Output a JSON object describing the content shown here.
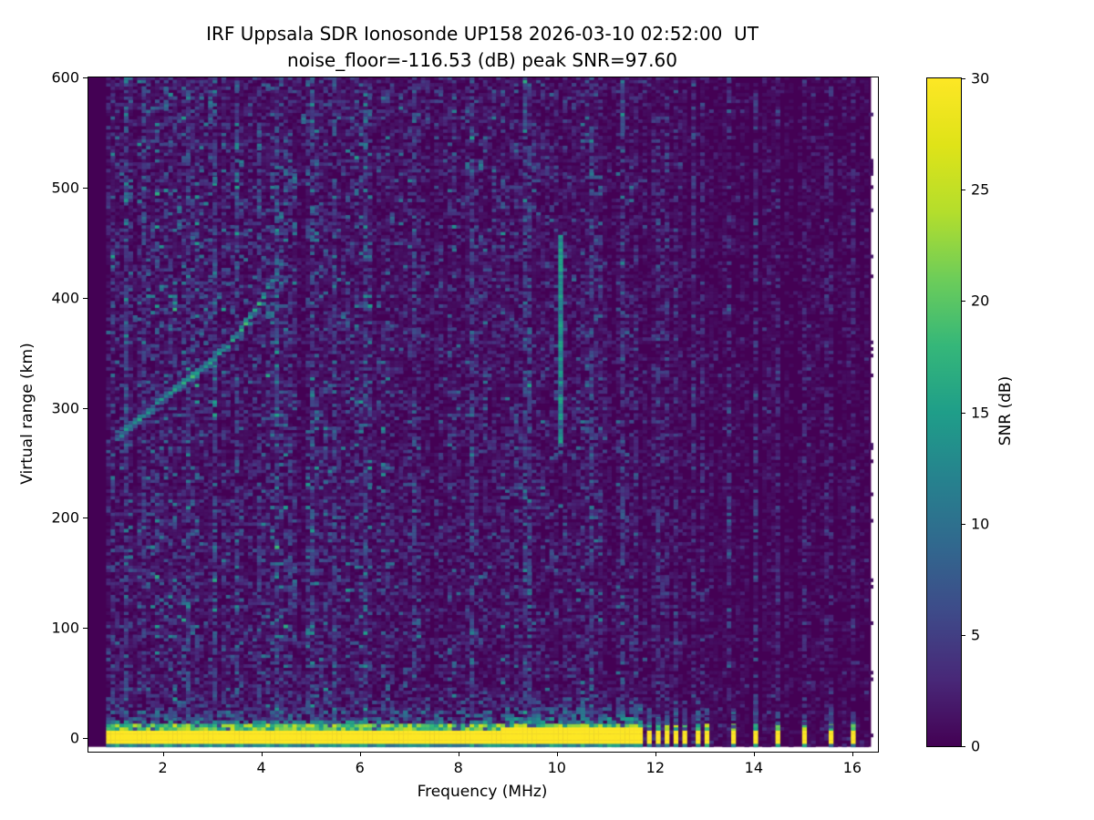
{
  "chart_data": {
    "type": "heatmap",
    "title": "IRF Uppsala SDR Ionosonde UP158 2026-03-10 02:52:00  UT",
    "subtitle": "noise_floor=-116.53 (dB) peak SNR=97.60",
    "noise_floor_db": -116.53,
    "peak_snr_db": 97.6,
    "xlabel": "Frequency (MHz)",
    "ylabel": "Virtual range (km)",
    "xlim": [
      0.49,
      16.52
    ],
    "ylim": [
      -12.4,
      600
    ],
    "x_ticks": [
      2,
      4,
      6,
      8,
      10,
      12,
      14,
      16
    ],
    "y_ticks": [
      0,
      100,
      200,
      300,
      400,
      500,
      600
    ],
    "grid": false,
    "legend": "none",
    "colormap": "viridis",
    "clim": [
      0,
      30
    ],
    "colorbar": {
      "label": "SNR (dB)",
      "ticks": [
        0,
        5,
        10,
        15,
        20,
        25,
        30
      ],
      "position": "right"
    },
    "colormap_anchors": [
      [
        0.0,
        "#440154"
      ],
      [
        0.1,
        "#482878"
      ],
      [
        0.2,
        "#3e4a89"
      ],
      [
        0.3,
        "#31688e"
      ],
      [
        0.4,
        "#26828e"
      ],
      [
        0.5,
        "#1f9e89"
      ],
      [
        0.6,
        "#35b779"
      ],
      [
        0.7,
        "#6dcd59"
      ],
      [
        0.8,
        "#b4de2c"
      ],
      [
        0.9,
        "#dfe318"
      ],
      [
        1.0,
        "#fde725"
      ]
    ],
    "mesh": {
      "freq_range_mhz": [
        0.49,
        16.38
      ],
      "data_start_mhz": 0.85,
      "range_km": [
        -8,
        604
      ],
      "freq_step_mhz": 0.09,
      "range_step_km": 3
    },
    "features": {
      "ground_band": {
        "freq_mhz": [
          0.85,
          11.72
        ],
        "core_km": [
          -5.5,
          6.5
        ],
        "snr_db": 30
      },
      "ground_band_boost_mhz": [
        8.8,
        11.72
      ],
      "ground_pulses_mhz": [
        11.81,
        12.0,
        12.19,
        12.37,
        12.56,
        12.78,
        12.96,
        13.52,
        14.02,
        14.48,
        15.0,
        15.52,
        15.98
      ],
      "rfi_stripe_10mhz": {
        "freq_mhz": 10.02,
        "range_km": [
          265,
          455
        ],
        "snr_db": 13
      },
      "faint_rfi_columns_mhz": [
        1.25,
        1.6,
        2.5,
        3.02,
        3.48,
        3.95,
        4.3,
        4.62,
        5.05,
        5.5,
        6.15,
        7.1,
        8.25,
        9.4,
        10.7,
        11.3
      ],
      "echo_trace_points": [
        [
          1.03,
          270,
          9
        ],
        [
          1.12,
          274,
          12
        ],
        [
          1.21,
          278,
          15
        ],
        [
          1.3,
          281,
          11
        ],
        [
          1.39,
          285,
          13
        ],
        [
          1.48,
          288,
          16
        ],
        [
          1.57,
          292,
          12
        ],
        [
          1.66,
          295,
          14
        ],
        [
          1.75,
          298,
          11
        ],
        [
          1.84,
          302,
          13
        ],
        [
          1.93,
          305,
          15
        ],
        [
          2.02,
          308,
          12
        ],
        [
          2.11,
          311,
          14
        ],
        [
          2.2,
          314,
          16
        ],
        [
          2.29,
          317,
          12
        ],
        [
          2.38,
          320,
          17
        ],
        [
          2.47,
          323,
          14
        ],
        [
          2.56,
          326,
          19
        ],
        [
          2.65,
          329,
          15
        ],
        [
          2.74,
          332,
          12
        ],
        [
          2.83,
          336,
          14
        ],
        [
          2.92,
          339,
          16
        ],
        [
          3.01,
          343,
          13
        ],
        [
          3.1,
          347,
          15
        ],
        [
          3.19,
          351,
          12
        ],
        [
          3.28,
          355,
          14
        ],
        [
          3.37,
          359,
          16
        ],
        [
          3.46,
          364,
          12
        ],
        [
          3.55,
          369,
          17
        ],
        [
          3.64,
          375,
          19
        ],
        [
          3.73,
          381,
          14
        ],
        [
          3.82,
          387,
          16
        ],
        [
          3.91,
          393,
          18
        ],
        [
          4.0,
          400,
          15
        ],
        [
          4.09,
          407,
          13
        ],
        [
          4.18,
          414,
          12
        ],
        [
          4.27,
          421,
          11
        ],
        [
          4.36,
          428,
          10
        ]
      ],
      "echo_scatter_points": [
        [
          2.52,
          350,
          8
        ],
        [
          2.7,
          366,
          9
        ],
        [
          2.88,
          382,
          8
        ],
        [
          3.06,
          398,
          10
        ],
        [
          3.24,
          412,
          8
        ],
        [
          3.42,
          426,
          9
        ],
        [
          3.15,
          368,
          7
        ],
        [
          3.6,
          396,
          8
        ],
        [
          3.78,
          418,
          9
        ],
        [
          3.96,
          434,
          8
        ],
        [
          4.12,
          444,
          7
        ],
        [
          3.33,
          386,
          8
        ],
        [
          2.61,
          342,
          7
        ],
        [
          2.79,
          356,
          8
        ],
        [
          3.5,
          440,
          7
        ],
        [
          3.88,
          452,
          8
        ],
        [
          4.2,
          458,
          7
        ],
        [
          4.05,
          380,
          9
        ],
        [
          4.15,
          392,
          8
        ],
        [
          4.3,
          404,
          7
        ],
        [
          4.45,
          415,
          8
        ],
        [
          4.38,
          440,
          7
        ],
        [
          2.95,
          415,
          7
        ],
        [
          3.05,
          430,
          8
        ],
        [
          2.75,
          400,
          7
        ],
        [
          3.65,
          455,
          7
        ],
        [
          3.3,
          445,
          7
        ],
        [
          2.58,
          380,
          7
        ],
        [
          2.42,
          338,
          8
        ],
        [
          2.3,
          330,
          7
        ]
      ],
      "high_altitude_specks": [
        [
          1.5,
          486
        ],
        [
          1.53,
          472
        ],
        [
          1.56,
          498
        ],
        [
          2.02,
          572
        ],
        [
          2.05,
          588
        ],
        [
          2.3,
          480
        ],
        [
          2.33,
          466
        ],
        [
          2.92,
          562
        ],
        [
          2.95,
          576
        ],
        [
          3.05,
          506
        ],
        [
          3.55,
          522
        ],
        [
          3.9,
          536
        ],
        [
          3.93,
          548
        ],
        [
          4.3,
          470
        ],
        [
          4.6,
          506
        ],
        [
          2.6,
          452
        ],
        [
          1.8,
          432
        ],
        [
          5.0,
          480
        ],
        [
          2.15,
          540
        ],
        [
          3.45,
          590
        ],
        [
          4.85,
          560
        ],
        [
          1.35,
          380
        ],
        [
          1.65,
          420
        ],
        [
          4.05,
          592
        ],
        [
          5.3,
          440
        ],
        [
          5.6,
          380
        ],
        [
          4.62,
          130
        ],
        [
          4.62,
          142
        ],
        [
          4.62,
          154
        ],
        [
          5.3,
          232
        ],
        [
          6.1,
          310
        ],
        [
          9.1,
          250
        ],
        [
          8.4,
          520
        ],
        [
          7.3,
          560
        ],
        [
          6.6,
          470
        ]
      ]
    }
  }
}
